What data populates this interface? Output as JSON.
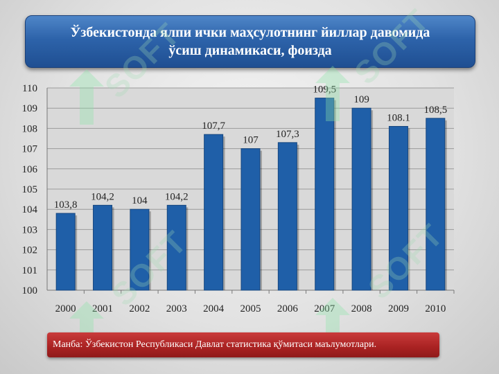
{
  "title_line1": "Ўзбекистонда ялпи ички маҳсулотнинг йиллар давомида",
  "title_line2": "ўсиш динамикаси, фоизда",
  "source": "Манба: Ўзбекистон Республикаси Давлат статистика қўмитаси маълумотлари.",
  "watermark": "SOFT",
  "colors": {
    "bar": "#1f5fa8",
    "title_bg": "#2d63aa",
    "source_bg": "#a92222"
  },
  "chart_data": {
    "type": "bar",
    "title": "",
    "xlabel": "",
    "ylabel": "",
    "categories": [
      "2000",
      "2001",
      "2002",
      "2003",
      "2004",
      "2005",
      "2006",
      "2007",
      "2008",
      "2009",
      "2010"
    ],
    "values": [
      103.8,
      104.2,
      104,
      104.2,
      107.7,
      107,
      107.3,
      109.5,
      109,
      108.1,
      108.5
    ],
    "value_labels": [
      "103,8",
      "104,2",
      "104",
      "104,2",
      "107,7",
      "107",
      "107,3",
      "109,5",
      "109",
      "108.1",
      "108,5"
    ],
    "ylim": [
      100,
      110
    ],
    "yticks": [
      "100",
      "101",
      "102",
      "103",
      "104",
      "105",
      "106",
      "107",
      "108",
      "109",
      "110"
    ],
    "grid": true,
    "legend": "none"
  }
}
